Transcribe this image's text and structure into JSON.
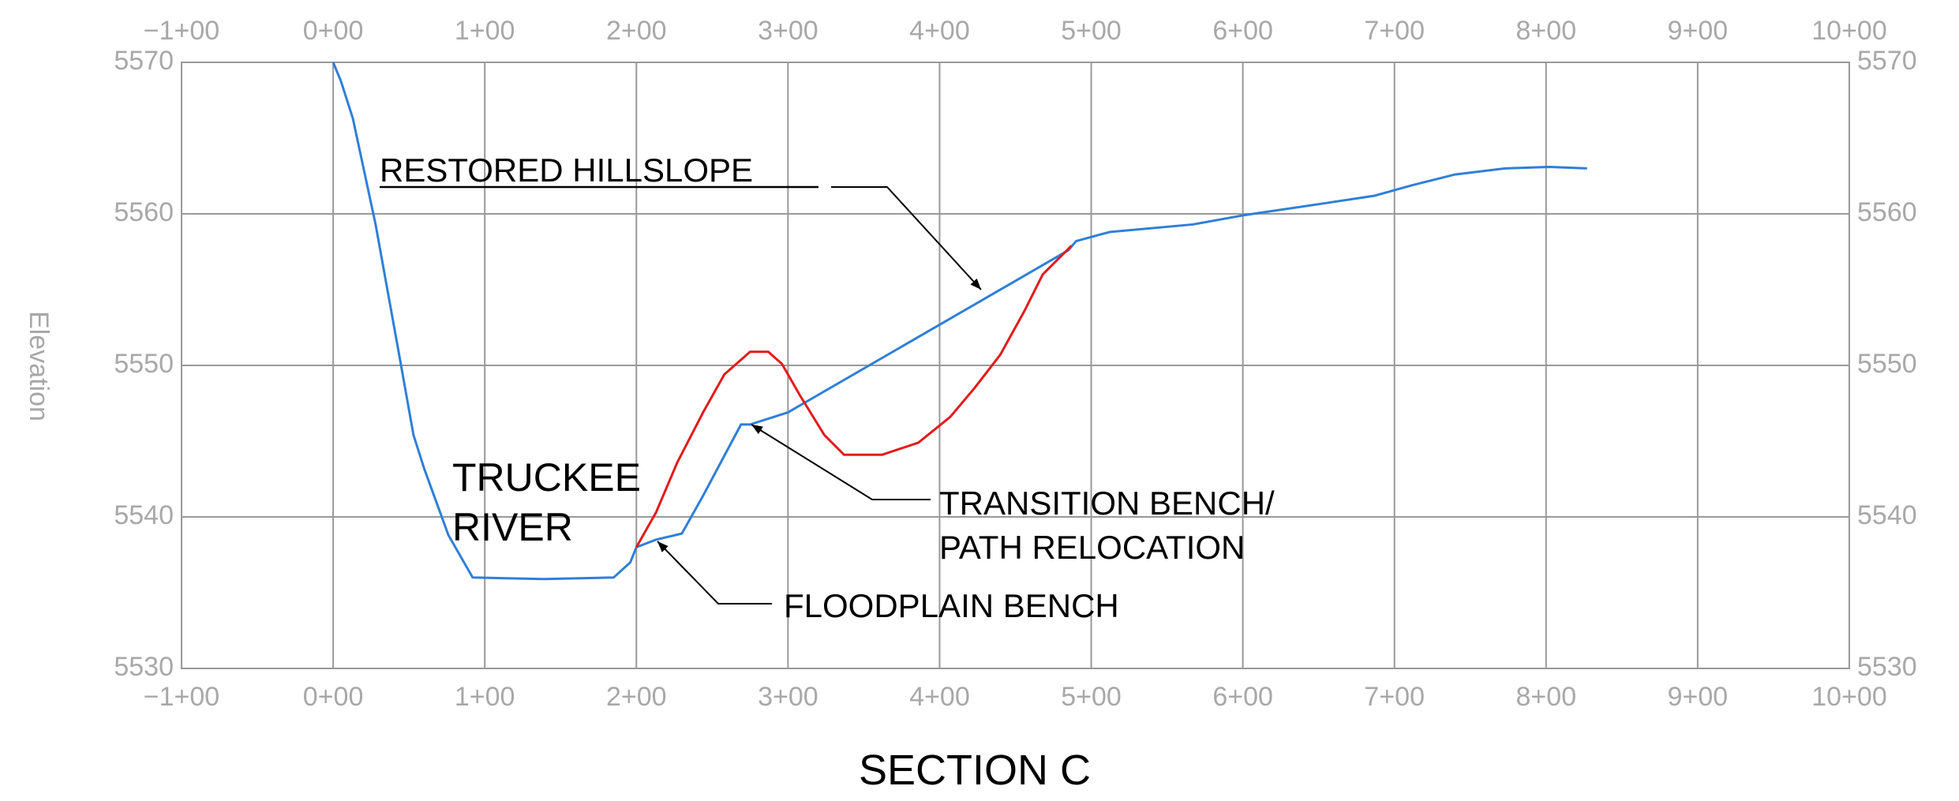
{
  "chart_data": {
    "type": "line",
    "title": "SECTION C",
    "y_label": "Elevation",
    "annotations": [
      "RESTORED HILLSLOPE",
      "TRUCKEE",
      "RIVER",
      "TRANSITION BENCH/",
      "PATH RELOCATION",
      "FLOODPLAIN BENCH"
    ],
    "xlim": [
      -100,
      1000
    ],
    "ylim": [
      5530,
      5570
    ],
    "xticks": [
      {
        "value": -100,
        "label": "−1+00"
      },
      {
        "value": 0,
        "label": "0+00"
      },
      {
        "value": 100,
        "label": "1+00"
      },
      {
        "value": 200,
        "label": "2+00"
      },
      {
        "value": 300,
        "label": "3+00"
      },
      {
        "value": 400,
        "label": "4+00"
      },
      {
        "value": 500,
        "label": "5+00"
      },
      {
        "value": 600,
        "label": "6+00"
      },
      {
        "value": 700,
        "label": "7+00"
      },
      {
        "value": 800,
        "label": "8+00"
      },
      {
        "value": 900,
        "label": "9+00"
      },
      {
        "value": 1000,
        "label": "10+00"
      }
    ],
    "yticks": [
      5530,
      5540,
      5550,
      5560,
      5570
    ],
    "grid": true,
    "series": [
      {
        "color": "#2f7fd8",
        "x": [
          0,
          5,
          13,
          28,
          43,
          53,
          60,
          76,
          92,
          139,
          185,
          196,
          200,
          213,
          230,
          244,
          269,
          275,
          300,
          485,
          490,
          512,
          567,
          600,
          654,
          687,
          712,
          740,
          773,
          802,
          827
        ],
        "values": [
          5570,
          5568.8,
          5566.3,
          5559.3,
          5551,
          5545.4,
          5543.2,
          5538.8,
          5536,
          5535.9,
          5536,
          5537,
          5538,
          5538.5,
          5538.9,
          5541.4,
          5546.1,
          5546.1,
          5546.9,
          5557.6,
          5558.2,
          5558.8,
          5559.3,
          5559.9,
          5560.7,
          5561.2,
          5561.9,
          5562.6,
          5563,
          5563.1,
          5563
        ]
      },
      {
        "color": "#e21b1b",
        "x": [
          200,
          213,
          227,
          244,
          258,
          275,
          287,
          296,
          308,
          324,
          337,
          362,
          386,
          407,
          423,
          440,
          456,
          468,
          481,
          487
        ],
        "values": [
          5538,
          5540.3,
          5543.6,
          5546.9,
          5549.4,
          5550.9,
          5550.9,
          5550.1,
          5548,
          5545.4,
          5544.1,
          5544.1,
          5544.9,
          5546.6,
          5548.5,
          5550.7,
          5553.6,
          5556,
          5557.3,
          5557.9
        ]
      }
    ]
  }
}
